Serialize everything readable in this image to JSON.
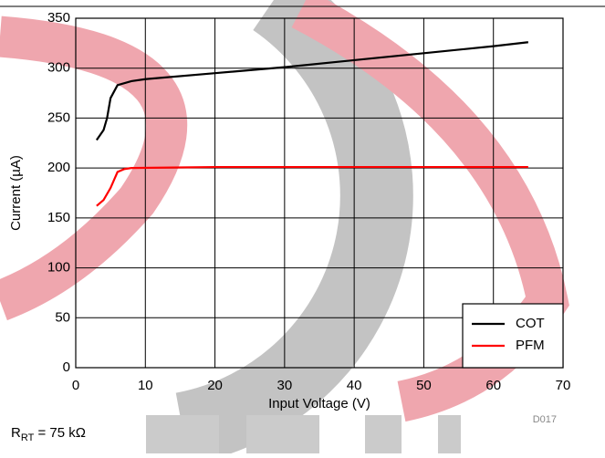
{
  "chart_data": {
    "type": "line",
    "x_label": "Input Voltage (V)",
    "y_label": "Current (µA)",
    "xlim": [
      0,
      70
    ],
    "xticks": [
      0,
      10,
      20,
      30,
      40,
      50,
      60,
      70
    ],
    "ylim": [
      0,
      350
    ],
    "yticks": [
      0,
      50,
      100,
      150,
      200,
      250,
      300,
      350
    ],
    "grid": true,
    "legend": "lower right",
    "series": [
      {
        "name": "COT",
        "color": "#000000",
        "x": [
          3,
          4,
          4.5,
          5,
          6,
          8,
          10,
          20,
          30,
          40,
          50,
          60,
          65
        ],
        "values": [
          228,
          238,
          250,
          270,
          283,
          287,
          289,
          295,
          301,
          308,
          315,
          322,
          326
        ]
      },
      {
        "name": "PFM",
        "color": "#ff0000",
        "x": [
          3,
          4,
          5,
          6,
          7,
          8,
          20,
          65
        ],
        "values": [
          162,
          168,
          180,
          196,
          199,
          200,
          201,
          201
        ]
      }
    ],
    "code": "D017",
    "note": {
      "symbol": "R",
      "subscript": "RT",
      "rest": " = 75 kΩ"
    }
  }
}
